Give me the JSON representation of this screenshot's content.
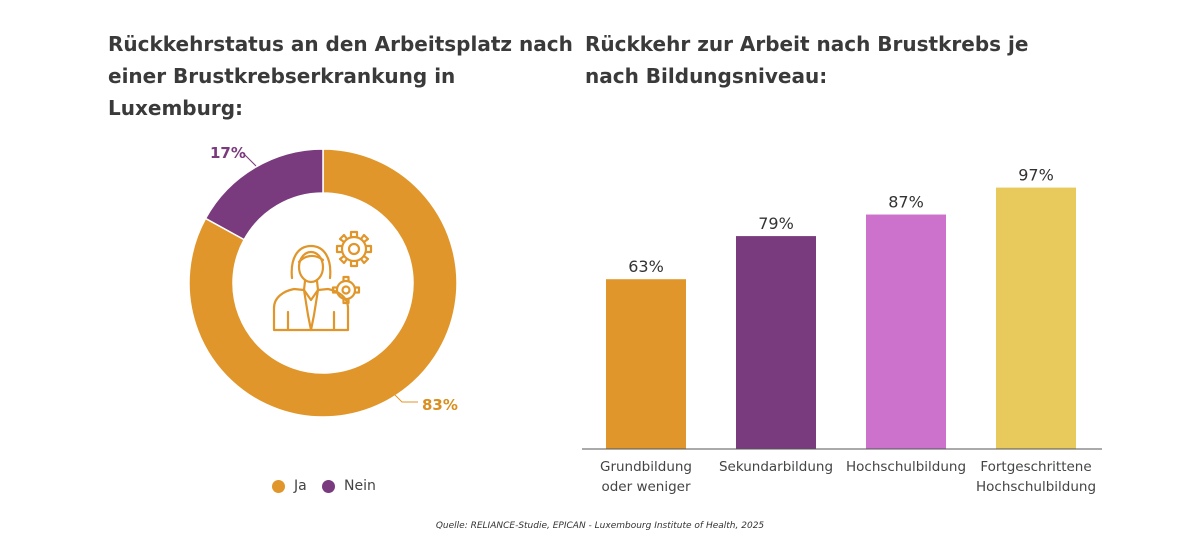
{
  "chart_data": [
    {
      "type": "pie",
      "title": "Rückkehrstatus an den Arbeitsplatz nach einer Brustkrebserkrankung in Luxemburg:",
      "slices": [
        {
          "label": "Ja",
          "value": 83,
          "display": "83%",
          "color": "#E0962A"
        },
        {
          "label": "Nein",
          "value": 17,
          "display": "17%",
          "color": "#7A3A7E"
        }
      ],
      "center_icon": "person-with-gears-icon",
      "legend_position": "bottom"
    },
    {
      "type": "bar",
      "title": "Rückkehr zur Arbeit nach Brustkrebs je nach Bildungsniveau:",
      "categories": [
        [
          "Grundbildung",
          "oder weniger"
        ],
        [
          "Sekundarbildung"
        ],
        [
          "Hochschulbildung"
        ],
        [
          "Fortgeschrittene",
          "Hochschulbildung"
        ]
      ],
      "values": [
        63,
        79,
        87,
        97
      ],
      "value_labels": [
        "63%",
        "79%",
        "87%",
        "97%"
      ],
      "colors": [
        "#E0962A",
        "#7A3A7E",
        "#CC72CC",
        "#E8C95C"
      ],
      "ylim": [
        0,
        100
      ]
    }
  ],
  "titles": {
    "left": "Rückkehrstatus an den Arbeitsplatz nach einer Brustkrebserkrankung in Luxemburg:",
    "right": "Rückkehr zur Arbeit nach Brustkrebs je nach Bildungsniveau:"
  },
  "legend": {
    "ja": "Ja",
    "nein": "Nein"
  },
  "colors": {
    "ja": "#E0962A",
    "nein": "#7A3A7E",
    "nein_label": "#7A3A7E",
    "ja_label": "#D98E1F",
    "axis": "#555555"
  },
  "source": "Quelle: RELIANCE-Studie, EPICAN - Luxembourg Institute of Health, 2025"
}
